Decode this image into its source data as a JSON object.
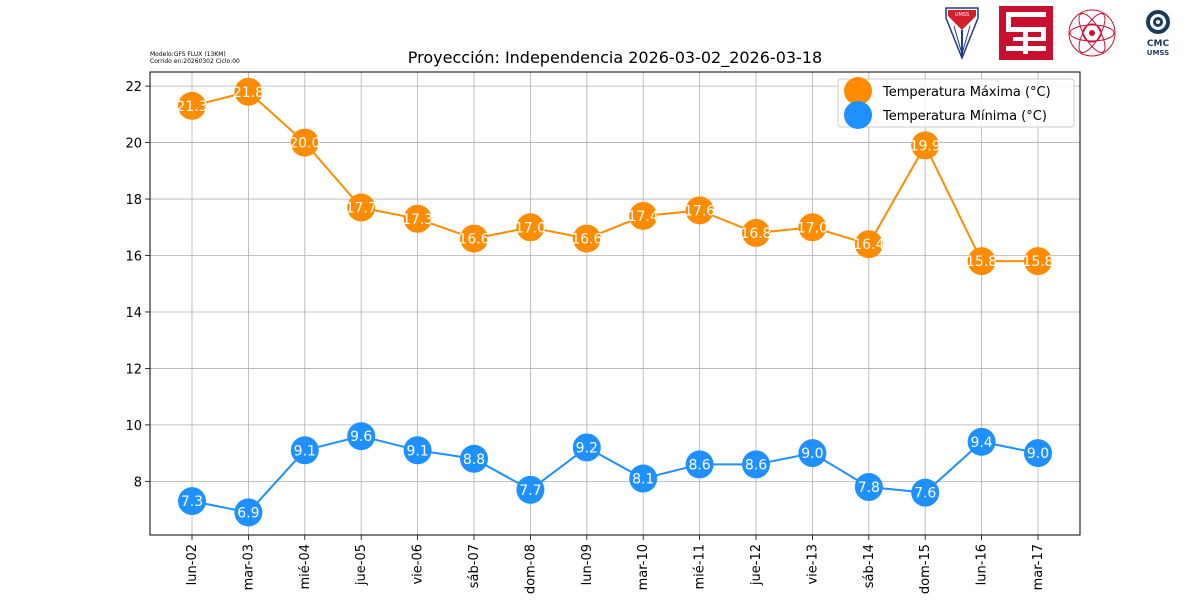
{
  "header": {
    "model_line": "Modelo:GFS FLUX (13KM)",
    "run_line": "Corrido en:20260302 Ciclo:00"
  },
  "logos": {
    "umss_shield_text": "UMSS",
    "cmc_line1": "CMC",
    "cmc_line2": "UMSS"
  },
  "chart_data": {
    "type": "line",
    "title": "Proyección: Independencia 2026-03-02_2026-03-18",
    "xlabel": "",
    "ylabel": "",
    "categories": [
      "lun-02",
      "mar-03",
      "mié-04",
      "jue-05",
      "vie-06",
      "sáb-07",
      "dom-08",
      "lun-09",
      "mar-10",
      "mié-11",
      "jue-12",
      "vie-13",
      "sáb-14",
      "dom-15",
      "lun-16",
      "mar-17"
    ],
    "ylim": [
      6.1,
      22.5
    ],
    "yticks": [
      8,
      10,
      12,
      14,
      16,
      18,
      20,
      22
    ],
    "grid": true,
    "legend_position": "top-right",
    "series": [
      {
        "name": "Temperatura Máxima  (°C)",
        "color": "#ff8c00",
        "values": [
          21.3,
          21.8,
          20.0,
          17.7,
          17.3,
          16.6,
          17.0,
          16.6,
          17.4,
          17.6,
          16.8,
          17.0,
          16.4,
          19.9,
          15.8,
          15.8
        ]
      },
      {
        "name": "Temperatura Mínima  (°C)",
        "color": "#1e90ff",
        "values": [
          7.3,
          6.9,
          9.1,
          9.6,
          9.1,
          8.8,
          7.7,
          9.2,
          8.1,
          8.6,
          8.6,
          9.0,
          7.8,
          7.6,
          9.4,
          9.0
        ]
      }
    ]
  }
}
